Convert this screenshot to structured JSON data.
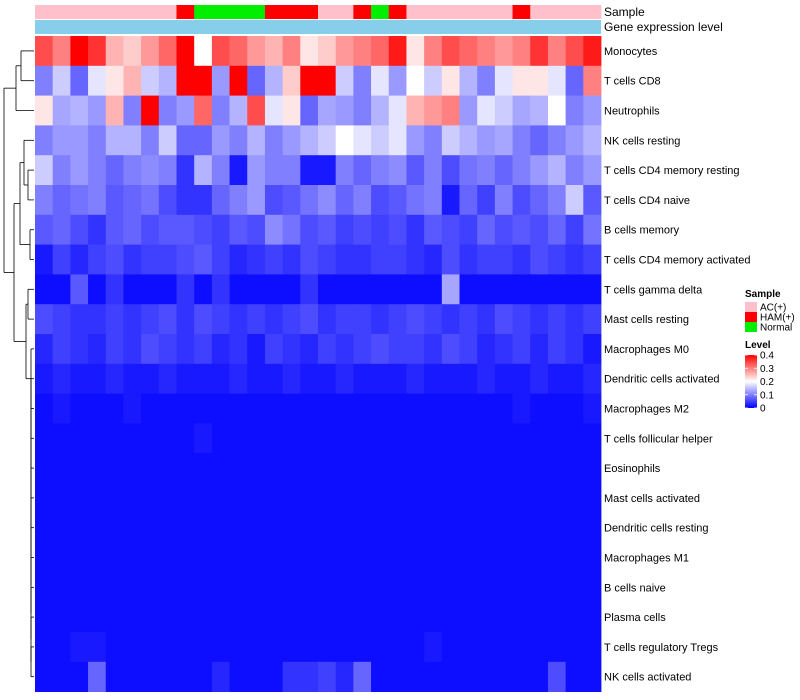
{
  "chart_data": {
    "type": "heatmap",
    "columns": 32,
    "annotation_labels": {
      "sample": "Sample",
      "gene_expression": "Gene expression level"
    },
    "sample_groups": [
      "AC",
      "AC",
      "AC",
      "AC",
      "AC",
      "AC",
      "AC",
      "AC",
      "HAM",
      "Normal",
      "Normal",
      "Normal",
      "Normal",
      "HAM",
      "HAM",
      "HAM",
      "AC",
      "AC",
      "HAM",
      "Normal",
      "HAM",
      "AC",
      "AC",
      "AC",
      "AC",
      "AC",
      "AC",
      "HAM",
      "AC",
      "AC",
      "AC",
      "AC"
    ],
    "rows": [
      {
        "name": "Monocytes",
        "values": [
          0.34,
          0.3,
          0.4,
          0.36,
          0.26,
          0.24,
          0.28,
          0.32,
          0.4,
          0.2,
          0.34,
          0.32,
          0.28,
          0.26,
          0.3,
          0.22,
          0.24,
          0.28,
          0.3,
          0.32,
          0.38,
          0.22,
          0.3,
          0.34,
          0.32,
          0.3,
          0.28,
          0.3,
          0.36,
          0.3,
          0.34,
          0.38
        ]
      },
      {
        "name": "T cells CD8",
        "values": [
          0.1,
          0.16,
          0.08,
          0.18,
          0.22,
          0.26,
          0.16,
          0.14,
          0.4,
          0.4,
          0.12,
          0.4,
          0.08,
          0.14,
          0.24,
          0.4,
          0.4,
          0.16,
          0.1,
          0.18,
          0.12,
          0.2,
          0.16,
          0.22,
          0.14,
          0.1,
          0.18,
          0.22,
          0.22,
          0.18,
          0.08,
          0.3
        ]
      },
      {
        "name": "Neutrophils",
        "values": [
          0.22,
          0.13,
          0.14,
          0.12,
          0.26,
          0.1,
          0.4,
          0.1,
          0.12,
          0.32,
          0.1,
          0.14,
          0.34,
          0.18,
          0.22,
          0.08,
          0.13,
          0.12,
          0.1,
          0.14,
          0.18,
          0.26,
          0.28,
          0.3,
          0.12,
          0.18,
          0.16,
          0.13,
          0.14,
          0.2,
          0.1,
          0.12
        ]
      },
      {
        "name": "NK cells resting",
        "values": [
          0.1,
          0.12,
          0.12,
          0.1,
          0.14,
          0.14,
          0.1,
          0.16,
          0.08,
          0.08,
          0.12,
          0.1,
          0.14,
          0.1,
          0.12,
          0.14,
          0.16,
          0.2,
          0.18,
          0.16,
          0.18,
          0.12,
          0.1,
          0.16,
          0.14,
          0.12,
          0.13,
          0.1,
          0.08,
          0.1,
          0.12,
          0.14
        ]
      },
      {
        "name": "T cells CD4 memory resting",
        "values": [
          0.16,
          0.1,
          0.12,
          0.1,
          0.08,
          0.1,
          0.11,
          0.1,
          0.04,
          0.14,
          0.1,
          0.02,
          0.12,
          0.1,
          0.1,
          0.02,
          0.02,
          0.1,
          0.08,
          0.1,
          0.11,
          0.07,
          0.1,
          0.06,
          0.09,
          0.1,
          0.08,
          0.1,
          0.12,
          0.14,
          0.1,
          0.12
        ]
      },
      {
        "name": "T cells CD4 naive",
        "values": [
          0.1,
          0.08,
          0.09,
          0.1,
          0.07,
          0.08,
          0.09,
          0.06,
          0.04,
          0.04,
          0.08,
          0.1,
          0.12,
          0.06,
          0.07,
          0.09,
          0.11,
          0.08,
          0.1,
          0.06,
          0.07,
          0.09,
          0.1,
          0.02,
          0.08,
          0.05,
          0.1,
          0.06,
          0.08,
          0.1,
          0.16,
          0.07
        ]
      },
      {
        "name": "B cells memory",
        "values": [
          0.07,
          0.08,
          0.06,
          0.04,
          0.07,
          0.08,
          0.06,
          0.07,
          0.07,
          0.06,
          0.05,
          0.07,
          0.06,
          0.11,
          0.09,
          0.06,
          0.07,
          0.05,
          0.06,
          0.05,
          0.06,
          0.04,
          0.07,
          0.06,
          0.05,
          0.08,
          0.06,
          0.07,
          0.06,
          0.08,
          0.05,
          0.09
        ]
      },
      {
        "name": "T cells CD4 memory activated",
        "values": [
          0.02,
          0.05,
          0.03,
          0.05,
          0.06,
          0.04,
          0.05,
          0.05,
          0.06,
          0.07,
          0.05,
          0.03,
          0.04,
          0.05,
          0.04,
          0.06,
          0.05,
          0.04,
          0.04,
          0.05,
          0.05,
          0.04,
          0.03,
          0.06,
          0.04,
          0.05,
          0.05,
          0.04,
          0.06,
          0.05,
          0.04,
          0.05
        ]
      },
      {
        "name": "T cells gamma delta",
        "values": [
          0.01,
          0.01,
          0.07,
          0.01,
          0.04,
          0.01,
          0.01,
          0.01,
          0.04,
          0.01,
          0.04,
          0.01,
          0.01,
          0.01,
          0.01,
          0.04,
          0.01,
          0.01,
          0.01,
          0.01,
          0.01,
          0.01,
          0.01,
          0.13,
          0.01,
          0.01,
          0.01,
          0.01,
          0.01,
          0.01,
          0.01,
          0.01
        ]
      },
      {
        "name": "Mast cells resting",
        "values": [
          0.06,
          0.05,
          0.04,
          0.04,
          0.05,
          0.04,
          0.05,
          0.06,
          0.04,
          0.06,
          0.05,
          0.04,
          0.05,
          0.04,
          0.05,
          0.06,
          0.04,
          0.05,
          0.05,
          0.04,
          0.05,
          0.06,
          0.05,
          0.04,
          0.05,
          0.04,
          0.06,
          0.05,
          0.04,
          0.05,
          0.04,
          0.05
        ]
      },
      {
        "name": "Macrophages M0",
        "values": [
          0.03,
          0.05,
          0.04,
          0.03,
          0.05,
          0.04,
          0.06,
          0.05,
          0.04,
          0.05,
          0.03,
          0.04,
          0.02,
          0.05,
          0.04,
          0.03,
          0.05,
          0.04,
          0.05,
          0.06,
          0.05,
          0.05,
          0.04,
          0.06,
          0.05,
          0.03,
          0.04,
          0.05,
          0.03,
          0.05,
          0.04,
          0.02
        ]
      },
      {
        "name": "Dendritic cells activated",
        "values": [
          0.02,
          0.03,
          0.02,
          0.02,
          0.03,
          0.02,
          0.02,
          0.03,
          0.02,
          0.02,
          0.02,
          0.03,
          0.02,
          0.02,
          0.03,
          0.02,
          0.02,
          0.03,
          0.02,
          0.02,
          0.02,
          0.03,
          0.02,
          0.02,
          0.02,
          0.03,
          0.02,
          0.02,
          0.03,
          0.02,
          0.02,
          0.03
        ]
      },
      {
        "name": "Macrophages M2",
        "values": [
          0.01,
          0.02,
          0.01,
          0.01,
          0.01,
          0.02,
          0.01,
          0.01,
          0.01,
          0.01,
          0.01,
          0.01,
          0.01,
          0.01,
          0.01,
          0.01,
          0.01,
          0.01,
          0.01,
          0.01,
          0.01,
          0.01,
          0.01,
          0.01,
          0.01,
          0.01,
          0.01,
          0.02,
          0.01,
          0.01,
          0.01,
          0.02
        ]
      },
      {
        "name": "T cells follicular helper",
        "values": [
          0.01,
          0.01,
          0.01,
          0.01,
          0.01,
          0.01,
          0.01,
          0.01,
          0.01,
          0.02,
          0.01,
          0.01,
          0.01,
          0.01,
          0.01,
          0.01,
          0.01,
          0.01,
          0.01,
          0.01,
          0.01,
          0.01,
          0.01,
          0.01,
          0.01,
          0.01,
          0.01,
          0.01,
          0.01,
          0.01,
          0.01,
          0.01
        ]
      },
      {
        "name": "Eosinophils",
        "values": [
          0.01,
          0.01,
          0.01,
          0.01,
          0.01,
          0.01,
          0.01,
          0.01,
          0.01,
          0.01,
          0.01,
          0.01,
          0.01,
          0.01,
          0.01,
          0.01,
          0.01,
          0.01,
          0.01,
          0.01,
          0.01,
          0.01,
          0.01,
          0.01,
          0.01,
          0.01,
          0.01,
          0.01,
          0.01,
          0.01,
          0.01,
          0.01
        ]
      },
      {
        "name": "Mast cells activated",
        "values": [
          0.01,
          0.01,
          0.01,
          0.01,
          0.01,
          0.01,
          0.01,
          0.01,
          0.01,
          0.01,
          0.01,
          0.01,
          0.01,
          0.01,
          0.01,
          0.01,
          0.01,
          0.01,
          0.01,
          0.01,
          0.01,
          0.01,
          0.01,
          0.01,
          0.01,
          0.01,
          0.01,
          0.01,
          0.01,
          0.01,
          0.01,
          0.01
        ]
      },
      {
        "name": "Dendritic cells resting",
        "values": [
          0.01,
          0.01,
          0.01,
          0.01,
          0.01,
          0.01,
          0.01,
          0.01,
          0.01,
          0.01,
          0.01,
          0.01,
          0.01,
          0.01,
          0.01,
          0.01,
          0.01,
          0.01,
          0.01,
          0.01,
          0.01,
          0.01,
          0.01,
          0.01,
          0.01,
          0.01,
          0.01,
          0.01,
          0.01,
          0.01,
          0.01,
          0.01
        ]
      },
      {
        "name": "Macrophages M1",
        "values": [
          0.01,
          0.01,
          0.01,
          0.01,
          0.01,
          0.01,
          0.01,
          0.01,
          0.01,
          0.01,
          0.01,
          0.01,
          0.01,
          0.01,
          0.01,
          0.01,
          0.01,
          0.01,
          0.01,
          0.01,
          0.01,
          0.01,
          0.01,
          0.01,
          0.01,
          0.01,
          0.01,
          0.01,
          0.01,
          0.01,
          0.01,
          0.01
        ]
      },
      {
        "name": "B cells naive",
        "values": [
          0.01,
          0.01,
          0.01,
          0.01,
          0.01,
          0.01,
          0.01,
          0.01,
          0.01,
          0.01,
          0.01,
          0.01,
          0.01,
          0.01,
          0.01,
          0.01,
          0.01,
          0.01,
          0.01,
          0.01,
          0.01,
          0.01,
          0.01,
          0.01,
          0.01,
          0.01,
          0.01,
          0.01,
          0.01,
          0.01,
          0.01,
          0.01
        ]
      },
      {
        "name": "Plasma cells",
        "values": [
          0.01,
          0.01,
          0.01,
          0.01,
          0.01,
          0.01,
          0.01,
          0.01,
          0.01,
          0.01,
          0.01,
          0.01,
          0.01,
          0.01,
          0.01,
          0.01,
          0.01,
          0.01,
          0.01,
          0.01,
          0.01,
          0.01,
          0.01,
          0.01,
          0.01,
          0.01,
          0.01,
          0.01,
          0.01,
          0.01,
          0.01,
          0.01
        ]
      },
      {
        "name": "T cells regulatory  Tregs",
        "values": [
          0.01,
          0.01,
          0.02,
          0.02,
          0.01,
          0.01,
          0.01,
          0.01,
          0.01,
          0.01,
          0.01,
          0.01,
          0.01,
          0.01,
          0.01,
          0.01,
          0.01,
          0.01,
          0.01,
          0.01,
          0.01,
          0.01,
          0.02,
          0.01,
          0.01,
          0.01,
          0.01,
          0.01,
          0.01,
          0.01,
          0.01,
          0.01
        ]
      },
      {
        "name": "NK cells activated",
        "values": [
          0.01,
          0.01,
          0.01,
          0.08,
          0.01,
          0.01,
          0.01,
          0.01,
          0.01,
          0.01,
          0.03,
          0.01,
          0.01,
          0.01,
          0.04,
          0.04,
          0.05,
          0.03,
          0.08,
          0.01,
          0.01,
          0.01,
          0.01,
          0.01,
          0.01,
          0.01,
          0.01,
          0.01,
          0.01,
          0.06,
          0.01,
          0.01
        ]
      }
    ],
    "color_scale": {
      "min": 0,
      "max": 0.4,
      "low": "#0000ff",
      "mid": "#ffffff",
      "high": "#ff0000",
      "midpoint": 0.2
    },
    "sample_colors": {
      "AC": "#ffc0cb",
      "HAM": "#ff0000",
      "Normal": "#00ee00"
    },
    "gene_expression_color": "#87ceeb",
    "legend": {
      "position": "right",
      "sample_title": "Sample",
      "sample_items": [
        {
          "key": "AC",
          "label": "AC(+)"
        },
        {
          "key": "HAM",
          "label": "HAM(+)"
        },
        {
          "key": "Normal",
          "label": "Normal"
        }
      ],
      "level_title": "Level",
      "level_ticks": [
        {
          "value": 0.4,
          "label": "0.4"
        },
        {
          "value": 0.3,
          "label": "0.3"
        },
        {
          "value": 0.2,
          "label": "0.2"
        },
        {
          "value": 0.1,
          "label": "0.1"
        },
        {
          "value": 0,
          "label": "0"
        }
      ]
    },
    "dendrogram": "row clustering tree on the left"
  }
}
